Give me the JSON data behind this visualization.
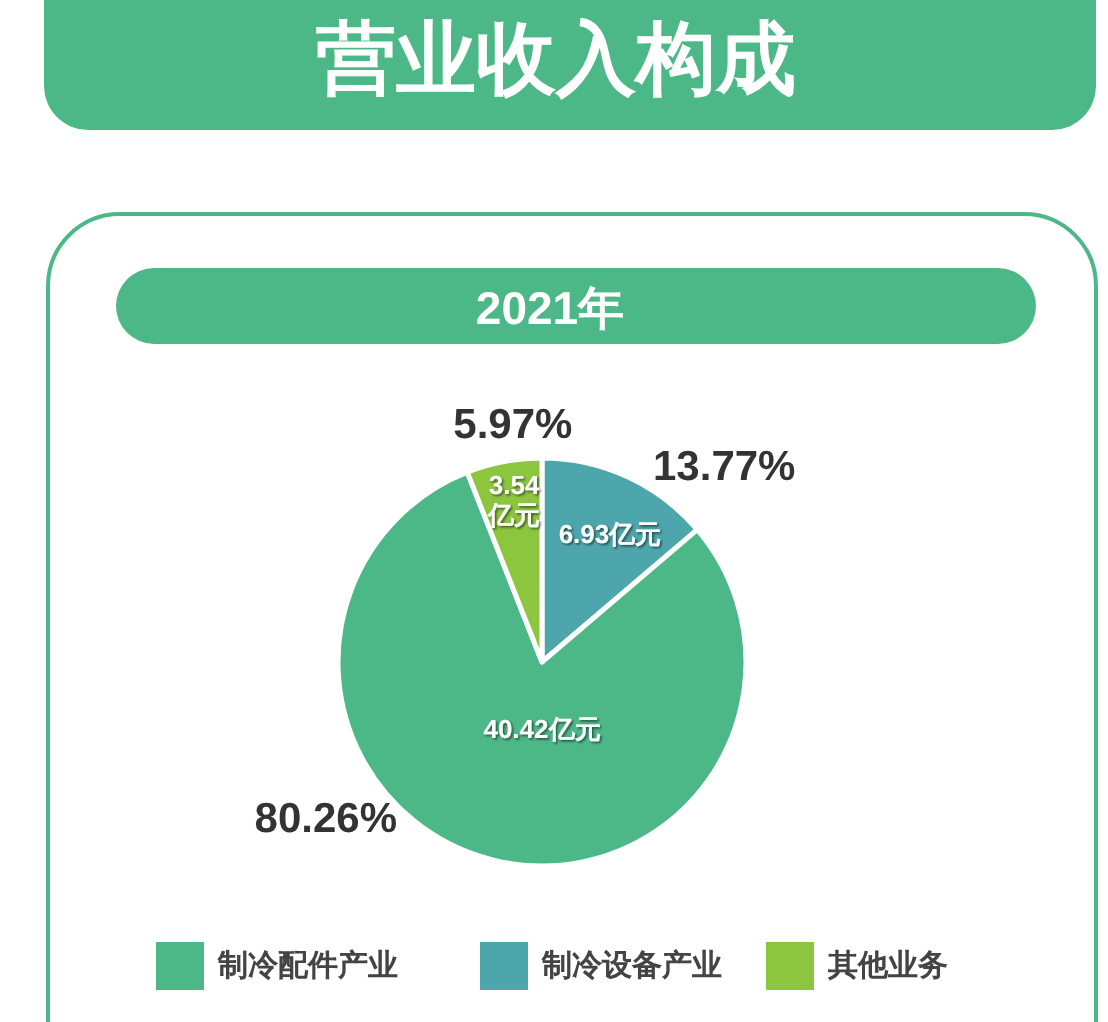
{
  "chart_data": {
    "type": "pie",
    "title": "营业收入构成",
    "subtitle": "2021年",
    "categories": [
      "制冷配件产业",
      "制冷设备产业",
      "其他业务"
    ],
    "values": [
      80.26,
      13.77,
      5.97
    ],
    "colors": [
      "#4db887",
      "#4ea6ad",
      "#8cc63f"
    ],
    "value_labels": [
      "80.26%",
      "13.77%",
      "5.97%"
    ],
    "annotations": [
      "40.42亿元",
      "6.93亿元",
      "3.54\n亿元"
    ],
    "legend": "bottom"
  }
}
